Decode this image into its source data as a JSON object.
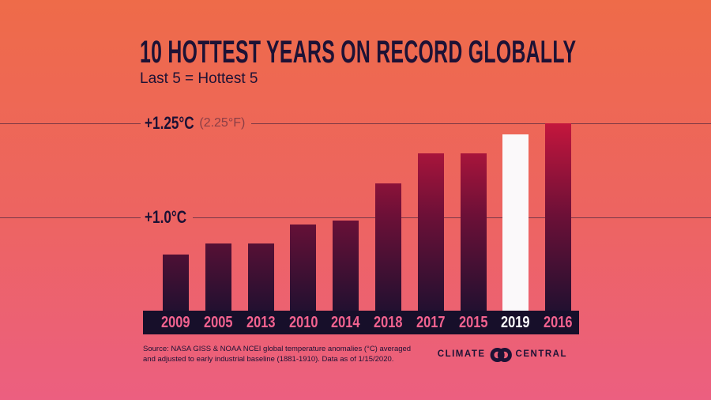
{
  "header": {
    "title": "10 HOTTEST YEARS ON RECORD GLOBALLY",
    "subtitle": "Last 5 = Hottest 5"
  },
  "axis": {
    "gridlines": [
      {
        "label_c": "+1.25°C",
        "label_f": "(2.25°F)",
        "value": 1.25
      },
      {
        "label_c": "+1.0°C",
        "label_f": "",
        "value": 1.0
      }
    ]
  },
  "chart_data": {
    "type": "bar",
    "title": "10 Hottest Years on Record Globally",
    "subtitle": "Last 5 = Hottest 5",
    "categories": [
      "2009",
      "2005",
      "2013",
      "2010",
      "2014",
      "2018",
      "2017",
      "2015",
      "2019",
      "2016"
    ],
    "values": [
      0.9,
      0.93,
      0.93,
      0.98,
      0.99,
      1.09,
      1.17,
      1.17,
      1.22,
      1.25
    ],
    "unit": "°C above early industrial baseline (1881-1910)",
    "highlight_category": "2019",
    "ylim": [
      0.75,
      1.25
    ],
    "gridline_values": [
      1.0,
      1.25
    ],
    "grid": true,
    "legend_position": "none"
  },
  "footer": {
    "source_line1": "Source: NASA GISS & NOAA NCEI global temperature anomalies (°C) averaged",
    "source_line2": "and adjusted to early industrial baseline (1881-1910). Data as of 1/15/2020.",
    "brand": {
      "word_left": "CLIMATE",
      "word_right": "CENTRAL"
    }
  },
  "colors": {
    "bg_top": "#ee6b49",
    "bg_mid": "#ed6462",
    "bg_bottom": "#ec5f80",
    "ink": "#1d1235",
    "band": "#170f2a",
    "year_label": "#f2628f",
    "year_label_highlight": "#fdfcfd",
    "gridline": "rgba(29,18,53,0.55)",
    "muted_label": "rgba(29,18,53,0.48)",
    "bar_gradient_top": "#c4163d",
    "bar_gradient_mid": "#6b1037",
    "bar_gradient_bottom": "#221030",
    "bar_highlight": "#fbf9fa"
  }
}
